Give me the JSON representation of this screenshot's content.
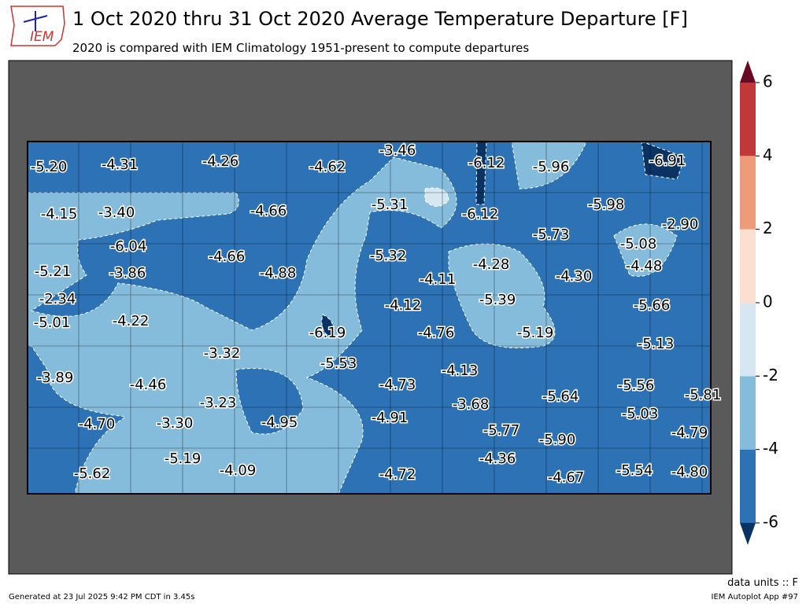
{
  "header": {
    "title": "1 Oct 2020 thru 31 Oct 2020 Average Temperature Departure [F]",
    "subtitle": "2020 is compared with IEM Climatology 1951-present to compute departures",
    "logo": "IEM"
  },
  "stations": [
    "-5.20",
    "-4.31",
    "-4.26",
    "-4.62",
    "-3.46",
    "-6.12",
    "-5.96",
    "-6.91",
    "-4.15",
    "-3.40",
    "-4.66",
    "-5.31",
    "-6.12",
    "-5.98",
    "-2.90",
    "-6.04",
    "-4.66",
    "-5.32",
    "-5.73",
    "-5.08",
    "-5.21",
    "-3.86",
    "-4.88",
    "-4.28",
    "-4.48",
    "-4.11",
    "-4.30",
    "-2.34",
    "-5.39",
    "-5.66",
    "-4.12",
    "-5.01",
    "-4.22",
    "-6.19",
    "-4.76",
    "-5.19",
    "-5.13",
    "-3.32",
    "-5.53",
    "-4.13",
    "-3.89",
    "-4.46",
    "-4.73",
    "-5.56",
    "-5.81",
    "-5.64",
    "-3.23",
    "-3.68",
    "-5.03",
    "-4.70",
    "-3.30",
    "-4.95",
    "-4.91",
    "-5.77",
    "-4.79",
    "-5.90",
    "-4.36",
    "-5.19",
    "-4.09",
    "-5.54",
    "-4.80",
    "-4.72",
    "-5.62",
    "-4.67"
  ],
  "colorbar": {
    "ticks": [
      -6,
      -4,
      -2,
      0,
      2,
      4,
      6
    ],
    "colors": [
      "#2c72b4",
      "#86bcdb",
      "#d6e7f1",
      "#fbe0d1",
      "#ee9b7a",
      "#c2383a"
    ],
    "under": "#0a3263",
    "over": "#6a0a22"
  },
  "footer": {
    "units": "data units :: F",
    "generated": "Generated at 23 Jul 2025 9:42 PM CDT in 3.45s",
    "app": "IEM Autoplot App #97"
  }
}
